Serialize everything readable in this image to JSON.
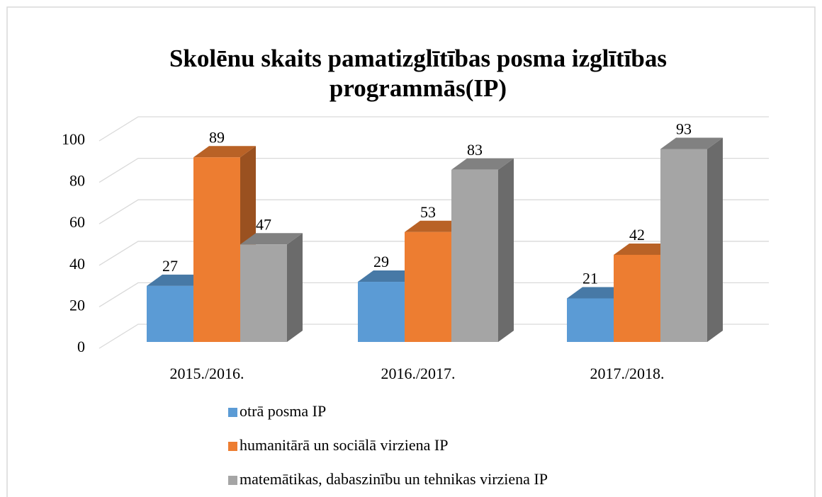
{
  "chart_data": {
    "type": "bar3d",
    "title": "Skolēnu skaits pamatizglītības posma izglītības",
    "subtitle": "programmās(IP)",
    "categories": [
      "2015./2016.",
      "2016./2017.",
      "2017./2018."
    ],
    "series": [
      {
        "name": "otrā posma IP",
        "color": "#5b9bd5",
        "values": [
          27,
          29,
          21
        ]
      },
      {
        "name": "humanitārā un sociālā virziena IP",
        "color": "#ed7d31",
        "values": [
          89,
          53,
          42
        ]
      },
      {
        "name": "matemātikas, dabaszinību un tehnikas virziena IP",
        "color": "#a5a5a5",
        "values": [
          47,
          83,
          93
        ]
      }
    ],
    "ylim": [
      0,
      100
    ],
    "yticks": [
      0,
      20,
      40,
      60,
      80,
      100
    ],
    "grid": true,
    "legend": "bottom"
  }
}
